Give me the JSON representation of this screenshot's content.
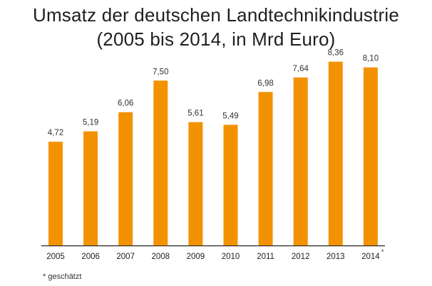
{
  "chart_data": {
    "type": "bar",
    "title": "Umsatz der deutschen Landtechnikindustrie",
    "subtitle": "(2005 bis 2014, in Mrd Euro)",
    "categories": [
      "2005",
      "2006",
      "2007",
      "2008",
      "2009",
      "2010",
      "2011",
      "2012",
      "2013",
      "2014"
    ],
    "category_markers": [
      "",
      "",
      "",
      "",
      "",
      "",
      "",
      "",
      "",
      "*"
    ],
    "values": [
      4.72,
      5.19,
      6.06,
      7.5,
      5.61,
      5.49,
      6.98,
      7.64,
      8.36,
      8.1
    ],
    "value_labels": [
      "4,72",
      "5,19",
      "6,06",
      "7,50",
      "5,61",
      "5,49",
      "6,98",
      "7,64",
      "8,36",
      "8,10"
    ],
    "xlabel": "",
    "ylabel": "",
    "ylim": [
      0,
      8.5
    ],
    "grid": false,
    "bar_color": "#f39200"
  },
  "footnote": "* geschätzt"
}
